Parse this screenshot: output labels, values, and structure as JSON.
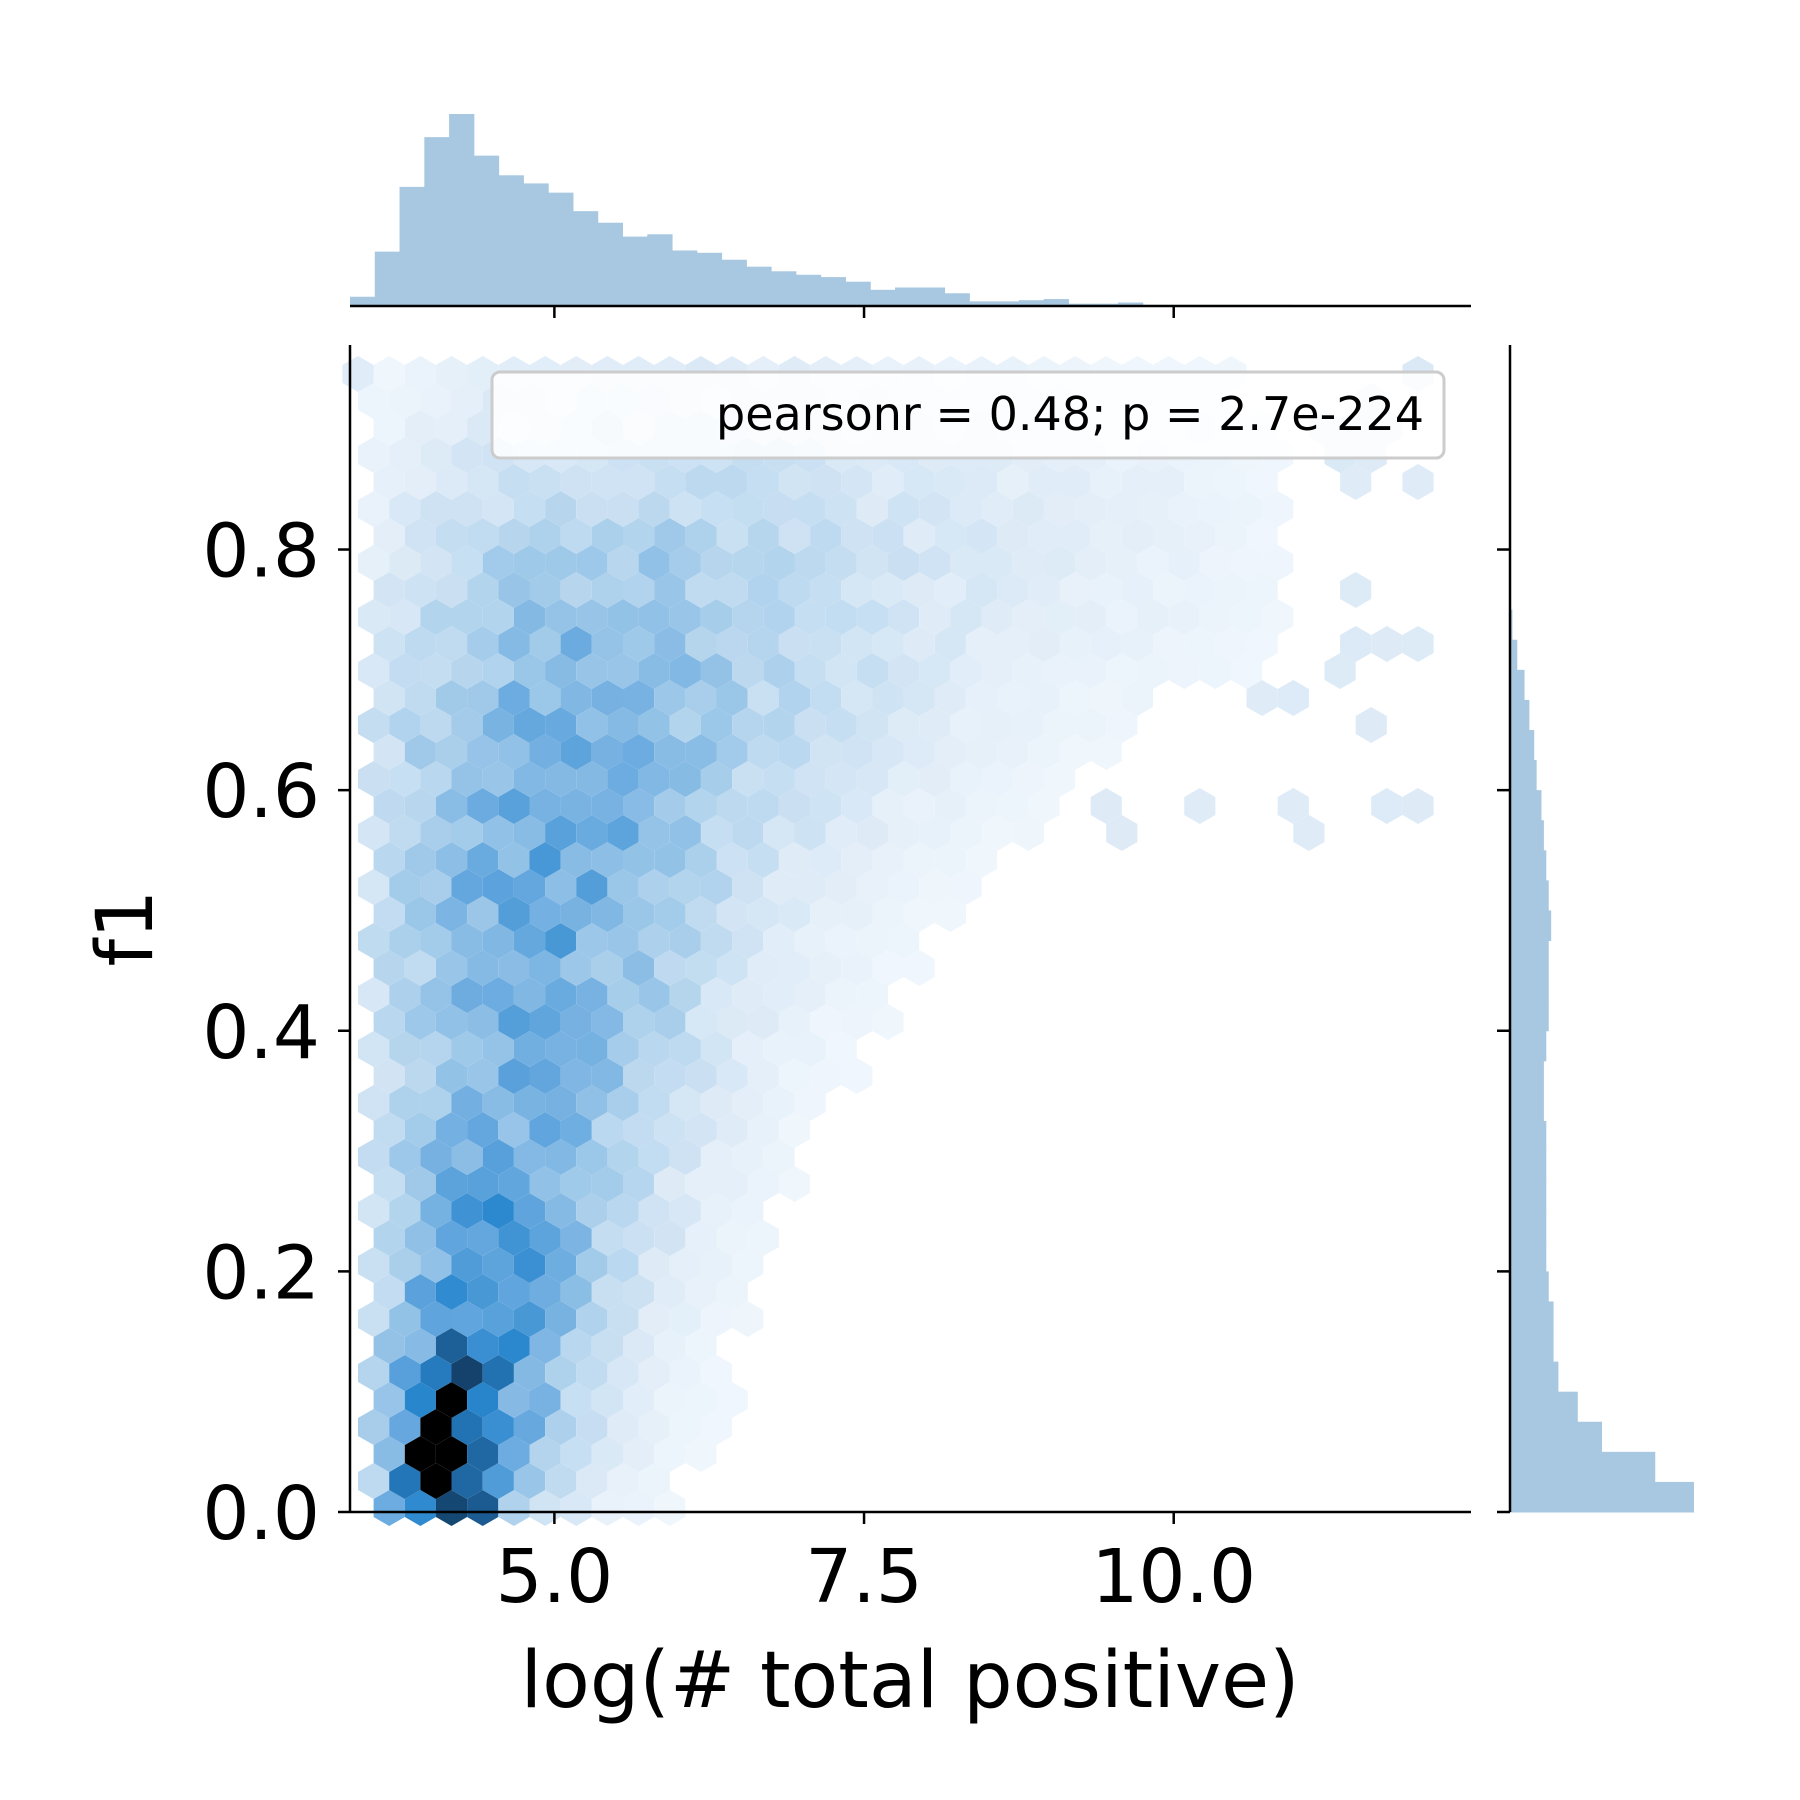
{
  "chart_data": {
    "type": "hexbin",
    "xlabel": "log(# total positive)",
    "ylabel": "f1",
    "xlim": [
      3.35,
      12.4
    ],
    "ylim": [
      0.0,
      0.97
    ],
    "x_ticks": [
      5.0,
      7.5,
      10.0
    ],
    "x_tick_labels": [
      "5.0",
      "7.5",
      "10.0"
    ],
    "y_ticks": [
      0.0,
      0.2,
      0.4,
      0.6,
      0.8
    ],
    "y_tick_labels": [
      "0.0",
      "0.2",
      "0.4",
      "0.6",
      "0.8"
    ],
    "legend_text": "pearsonr = 0.48; p = 2.7e-224",
    "legend_placement": "top-right",
    "grid": false,
    "colormap": "white-to-blue-to-black",
    "hist_color": "#a7c8e0",
    "pearson_r": 0.48,
    "p_value": "2.7e-224",
    "x_marginal_hist": {
      "bin_start": 3.35,
      "bin_width": 0.2,
      "counts": [
        8,
        47,
        103,
        146,
        166,
        130,
        113,
        106,
        98,
        82,
        72,
        60,
        62,
        48,
        46,
        40,
        34,
        30,
        27,
        25,
        21,
        14,
        16,
        16,
        11,
        4,
        4,
        5,
        6,
        2,
        2,
        3,
        1,
        1,
        1,
        1,
        1,
        1,
        0,
        0,
        0,
        0,
        0,
        0,
        0,
        0
      ]
    },
    "y_marginal_hist": {
      "bin_start": 0.0,
      "bin_width": 0.025,
      "counts": [
        76,
        60,
        38,
        28,
        20,
        18,
        18,
        16,
        15,
        15,
        15,
        15,
        15,
        14,
        14,
        15,
        16,
        16,
        16,
        17,
        16,
        15,
        14,
        13,
        11,
        10,
        8,
        6,
        3,
        1,
        0,
        0,
        0,
        0,
        0,
        0,
        0,
        0,
        0
      ]
    },
    "hexbin": {
      "center_x": 4.5,
      "center_y": 0.25,
      "density_scale": 1.0
    }
  }
}
